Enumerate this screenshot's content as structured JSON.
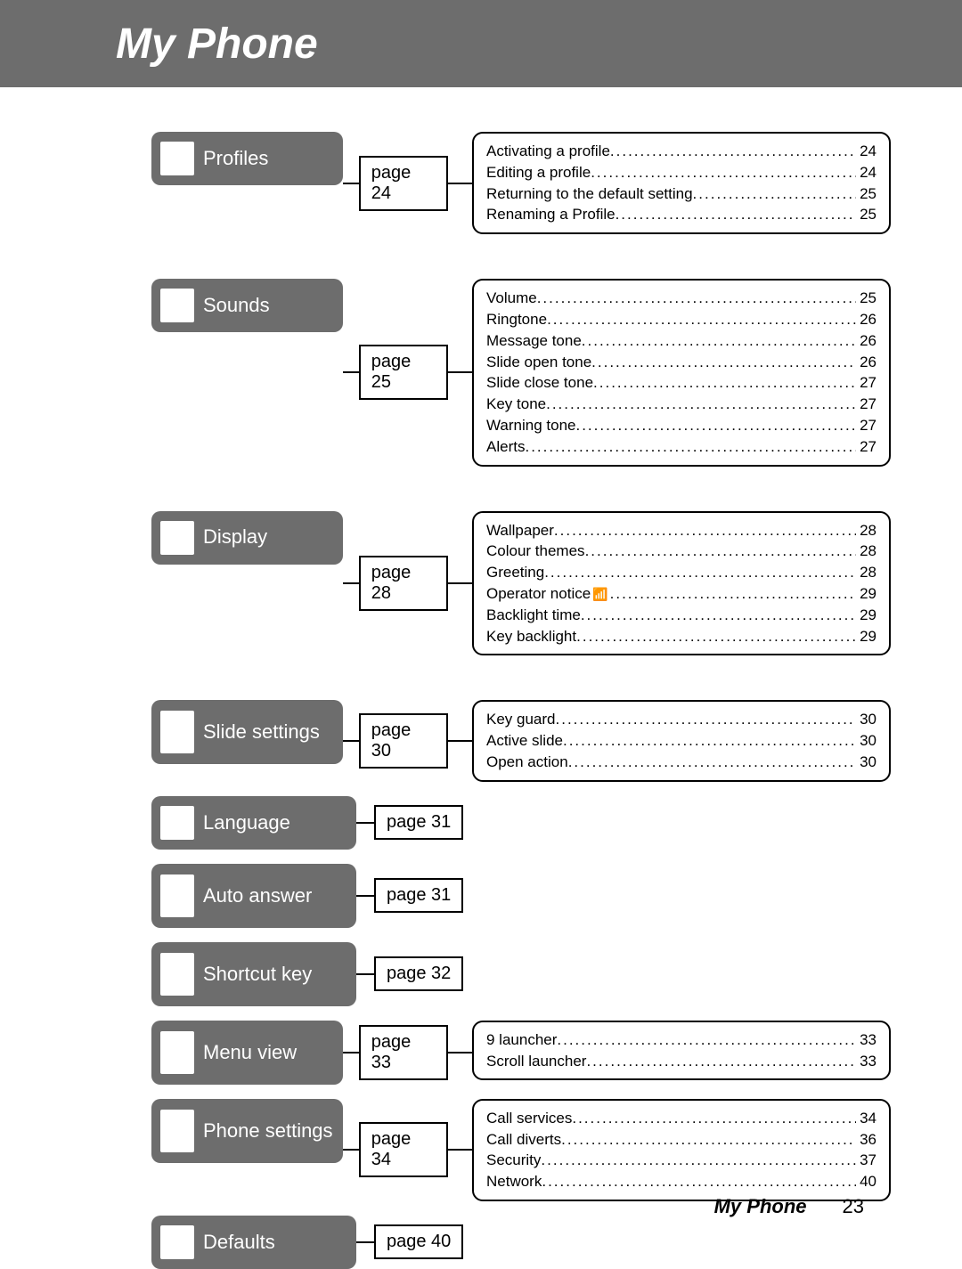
{
  "header": {
    "title": "My Phone"
  },
  "footer": {
    "title": "My Phone",
    "page": "23"
  },
  "sections": [
    {
      "label": "Profiles",
      "page": "page 24",
      "tall": false,
      "gap": "wide",
      "subs": [
        {
          "label": "Activating a profile",
          "page": "24"
        },
        {
          "label": "Editing a profile",
          "page": "24"
        },
        {
          "label": "Returning to the default setting",
          "page": "25"
        },
        {
          "label": "Renaming a Profile",
          "page": "25"
        }
      ]
    },
    {
      "label": "Sounds",
      "page": "page 25",
      "tall": false,
      "gap": "wide",
      "subs": [
        {
          "label": "Volume",
          "page": "25"
        },
        {
          "label": "Ringtone",
          "page": "26"
        },
        {
          "label": "Message tone",
          "page": "26"
        },
        {
          "label": "Slide open tone",
          "page": "26"
        },
        {
          "label": "Slide close tone",
          "page": "27"
        },
        {
          "label": "Key tone",
          "page": "27"
        },
        {
          "label": "Warning tone",
          "page": "27"
        },
        {
          "label": "Alerts",
          "page": "27"
        }
      ]
    },
    {
      "label": "Display",
      "page": "page 28",
      "tall": false,
      "gap": "wide",
      "subs": [
        {
          "label": "Wallpaper",
          "page": "28"
        },
        {
          "label": "Colour themes",
          "page": "28"
        },
        {
          "label": "Greeting",
          "page": "28"
        },
        {
          "label": "Operator notice",
          "icon": "📶",
          "page": "29"
        },
        {
          "label": "Backlight time",
          "page": "29"
        },
        {
          "label": "Key backlight",
          "page": "29"
        }
      ]
    },
    {
      "label": "Slide settings",
      "page": "page 30",
      "tall": true,
      "gap": "",
      "subs": [
        {
          "label": "Key guard",
          "page": "30"
        },
        {
          "label": "Active slide",
          "page": "30"
        },
        {
          "label": "Open action",
          "page": "30"
        }
      ]
    },
    {
      "label": "Language",
      "page": "page 31",
      "tall": false,
      "gap": "",
      "subs": []
    },
    {
      "label": "Auto answer",
      "page": "page 31",
      "tall": true,
      "gap": "",
      "subs": []
    },
    {
      "label": "Shortcut key",
      "page": "page 32",
      "tall": true,
      "gap": "",
      "subs": []
    },
    {
      "label": "Menu view",
      "page": "page 33",
      "tall": true,
      "gap": "",
      "subs": [
        {
          "label": "9 launcher",
          "page": "33"
        },
        {
          "label": "Scroll launcher",
          "page": "33"
        }
      ]
    },
    {
      "label": "Phone settings",
      "page": "page 34",
      "tall": true,
      "gap": "",
      "subs": [
        {
          "label": "Call services",
          "page": "34"
        },
        {
          "label": "Call diverts",
          "page": "36"
        },
        {
          "label": "Security",
          "page": "37"
        },
        {
          "label": "Network",
          "page": "40"
        }
      ]
    },
    {
      "label": "Defaults",
      "page": "page 40",
      "tall": false,
      "gap": "",
      "subs": []
    }
  ]
}
